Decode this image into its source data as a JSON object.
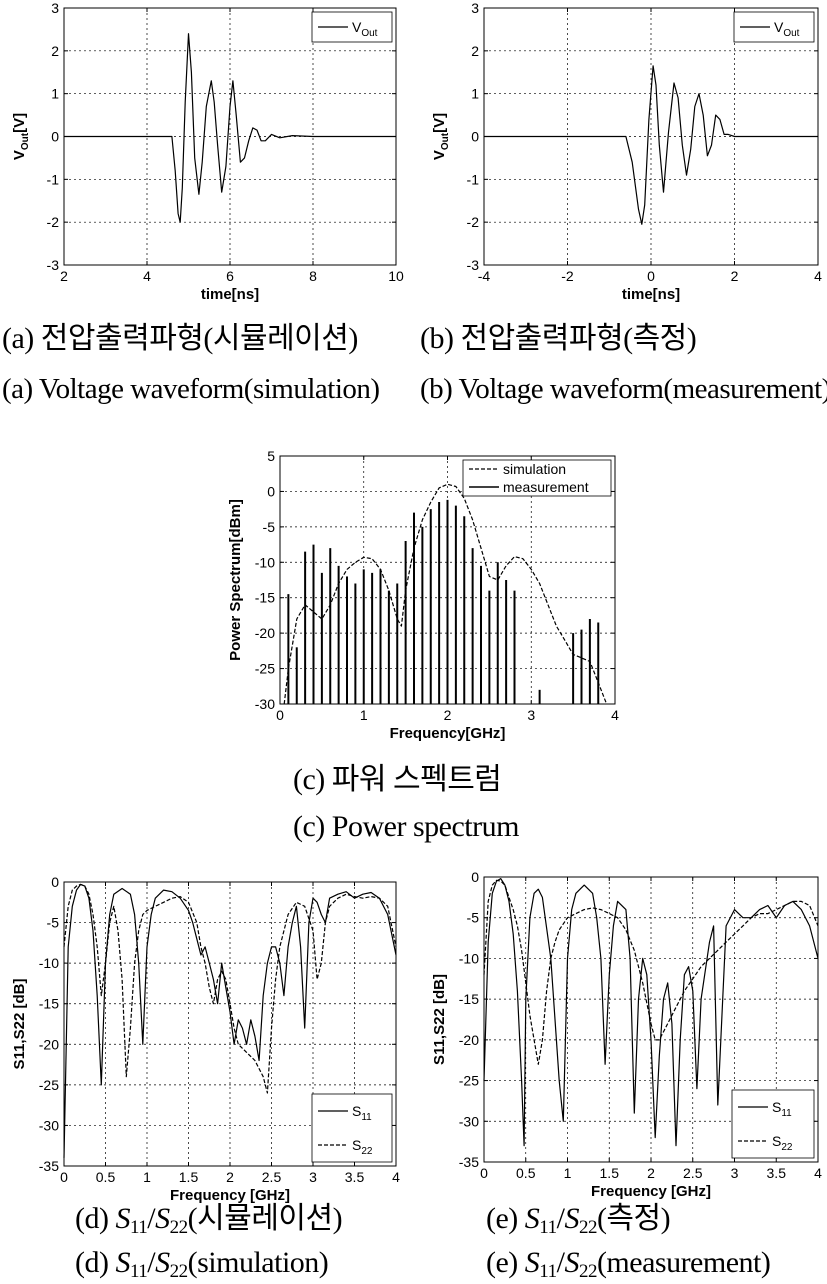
{
  "chart_data": [
    {
      "id": "a",
      "type": "line",
      "xlabel": "time[ns]",
      "ylabel": "V",
      "ylabel_sub": "Out",
      "ylabel_unit": "[V]",
      "xlim": [
        2,
        10
      ],
      "ylim": [
        -3,
        3
      ],
      "xticks": [
        2,
        4,
        6,
        8,
        10
      ],
      "yticks": [
        -3,
        -2,
        -1,
        0,
        1,
        2,
        3
      ],
      "grid": true,
      "legend_position": "top-right",
      "series": [
        {
          "name": "V",
          "name_sub": "Out",
          "style": "solid",
          "x": [
            2,
            4.6,
            4.68,
            4.75,
            4.8,
            4.85,
            4.92,
            5.0,
            5.07,
            5.15,
            5.25,
            5.33,
            5.43,
            5.55,
            5.62,
            5.7,
            5.8,
            5.9,
            6.0,
            6.07,
            6.15,
            6.25,
            6.35,
            6.45,
            6.55,
            6.65,
            6.75,
            6.85,
            7.0,
            7.2,
            7.5,
            8.0,
            10
          ],
          "y": [
            0,
            0,
            -0.8,
            -1.8,
            -2.0,
            -1.2,
            0.8,
            2.4,
            1.5,
            -0.5,
            -1.35,
            -0.6,
            0.7,
            1.3,
            0.8,
            -0.2,
            -1.3,
            -0.7,
            0.7,
            1.3,
            0.5,
            -0.6,
            -0.5,
            -0.1,
            0.2,
            0.15,
            -0.1,
            -0.1,
            0.05,
            -0.03,
            0.02,
            0,
            0
          ]
        }
      ]
    },
    {
      "id": "b",
      "type": "line",
      "xlabel": "time[ns]",
      "ylabel": "V",
      "ylabel_sub": "Out",
      "ylabel_unit": "[V]",
      "xlim": [
        -4,
        4
      ],
      "ylim": [
        -3,
        3
      ],
      "xticks": [
        -4,
        -2,
        0,
        2,
        4
      ],
      "yticks": [
        -3,
        -2,
        -1,
        0,
        1,
        2,
        3
      ],
      "grid": true,
      "legend_position": "top-right",
      "series": [
        {
          "name": "V",
          "name_sub": "Out",
          "style": "solid",
          "x": [
            -4,
            -0.6,
            -0.45,
            -0.3,
            -0.22,
            -0.15,
            -0.05,
            0.05,
            0.12,
            0.2,
            0.3,
            0.42,
            0.55,
            0.65,
            0.75,
            0.85,
            0.95,
            1.05,
            1.15,
            1.25,
            1.35,
            1.45,
            1.55,
            1.65,
            1.75,
            1.85,
            2.0,
            2.3,
            4
          ],
          "y": [
            0,
            0,
            -0.6,
            -1.7,
            -2.05,
            -1.6,
            0.4,
            1.65,
            1.2,
            -0.2,
            -1.3,
            0.1,
            1.25,
            0.9,
            -0.2,
            -0.9,
            -0.3,
            0.7,
            1.0,
            0.5,
            -0.45,
            -0.2,
            0.5,
            0.4,
            0.05,
            0.05,
            0,
            0,
            0
          ]
        }
      ]
    },
    {
      "id": "c",
      "type": "line",
      "xlabel": "Frequency[GHz]",
      "ylabel": "Power Spectrum[dBm]",
      "xlim": [
        0,
        4
      ],
      "ylim": [
        -30,
        5
      ],
      "xticks": [
        0,
        1,
        2,
        3,
        4
      ],
      "yticks": [
        -30,
        -25,
        -20,
        -15,
        -10,
        -5,
        0,
        5
      ],
      "grid": true,
      "legend_position": "top-right",
      "series": [
        {
          "name": "simulation",
          "style": "dashed",
          "x": [
            0.05,
            0.1,
            0.2,
            0.3,
            0.4,
            0.5,
            0.6,
            0.7,
            0.8,
            0.9,
            1.0,
            1.1,
            1.2,
            1.3,
            1.4,
            1.45,
            1.5,
            1.6,
            1.7,
            1.8,
            1.9,
            2.0,
            2.1,
            2.2,
            2.3,
            2.4,
            2.5,
            2.6,
            2.7,
            2.8,
            2.9,
            3.0,
            3.1,
            3.2,
            3.3,
            3.4,
            3.5,
            3.6,
            3.7,
            3.8,
            3.9
          ],
          "y": [
            -30,
            -25,
            -18,
            -16,
            -17,
            -18,
            -16,
            -13,
            -11,
            -10,
            -9.3,
            -9.5,
            -11,
            -14,
            -18,
            -19,
            -14,
            -8,
            -4,
            -1.5,
            0.5,
            1.0,
            0.7,
            -1,
            -4,
            -8,
            -12,
            -12.5,
            -10.5,
            -9.2,
            -9.5,
            -11,
            -13,
            -16,
            -19,
            -21,
            -23,
            -23.5,
            -24,
            -27,
            -30
          ]
        },
        {
          "name": "measurement",
          "style": "stems",
          "x": [
            0.1,
            0.2,
            0.3,
            0.4,
            0.5,
            0.6,
            0.7,
            0.8,
            0.9,
            1.0,
            1.1,
            1.2,
            1.3,
            1.4,
            1.5,
            1.6,
            1.7,
            1.8,
            1.9,
            2.0,
            2.1,
            2.2,
            2.3,
            2.4,
            2.5,
            2.6,
            2.7,
            2.8,
            3.1,
            3.5,
            3.6,
            3.7,
            3.8
          ],
          "y": [
            -14.5,
            -22,
            -8.5,
            -7.5,
            -11.5,
            -8,
            -10.5,
            -12,
            -13,
            -11,
            -11.5,
            -11,
            -14,
            -13,
            -7,
            -3,
            -5,
            -2.5,
            -1.5,
            -1.2,
            -2,
            -3.5,
            -8,
            -10.5,
            -14,
            -10,
            -12.5,
            -14,
            -28,
            -20,
            -19.5,
            -18,
            -18.5
          ]
        }
      ]
    },
    {
      "id": "d",
      "type": "line",
      "xlabel": "Frequency [GHz]",
      "ylabel": "S11,S22 [dB]",
      "xlim": [
        0,
        4
      ],
      "ylim": [
        -35,
        0
      ],
      "xticks": [
        0,
        0.5,
        1,
        1.5,
        2,
        2.5,
        3,
        3.5,
        4
      ],
      "yticks": [
        -35,
        -30,
        -25,
        -20,
        -15,
        -10,
        -5,
        0
      ],
      "grid": true,
      "legend_position": "bottom-right",
      "series": [
        {
          "name": "S",
          "name_sub": "11",
          "style": "solid",
          "x": [
            0,
            0.05,
            0.1,
            0.15,
            0.2,
            0.25,
            0.3,
            0.35,
            0.4,
            0.45,
            0.5,
            0.55,
            0.6,
            0.7,
            0.8,
            0.85,
            0.9,
            0.95,
            1.0,
            1.05,
            1.1,
            1.2,
            1.3,
            1.4,
            1.5,
            1.55,
            1.6,
            1.65,
            1.7,
            1.75,
            1.8,
            1.85,
            1.9,
            1.95,
            2.0,
            2.05,
            2.1,
            2.15,
            2.2,
            2.25,
            2.3,
            2.35,
            2.4,
            2.45,
            2.5,
            2.55,
            2.6,
            2.65,
            2.7,
            2.75,
            2.8,
            2.85,
            2.9,
            2.95,
            3.0,
            3.05,
            3.1,
            3.15,
            3.2,
            3.3,
            3.4,
            3.5,
            3.6,
            3.7,
            3.8,
            3.9,
            4.0
          ],
          "y": [
            -34,
            -8,
            -3,
            -1,
            -0.3,
            -0.5,
            -2,
            -6,
            -14,
            -25,
            -10,
            -4,
            -1.5,
            -0.8,
            -1.5,
            -4,
            -10,
            -20,
            -8,
            -4,
            -2,
            -1,
            -1.2,
            -2,
            -3.5,
            -5,
            -7,
            -9,
            -8,
            -10,
            -12,
            -15,
            -10,
            -13,
            -16,
            -20,
            -17,
            -18,
            -20,
            -17,
            -19,
            -22,
            -14,
            -10,
            -8,
            -8,
            -10,
            -14,
            -8,
            -5,
            -3,
            -8,
            -18,
            -5,
            -2,
            -2.5,
            -4,
            -5,
            -2,
            -1.5,
            -1.2,
            -2,
            -1.5,
            -1.3,
            -2,
            -4,
            -9
          ]
        },
        {
          "name": "S",
          "name_sub": "22",
          "style": "dashed",
          "x": [
            0,
            0.05,
            0.1,
            0.15,
            0.2,
            0.25,
            0.3,
            0.35,
            0.4,
            0.45,
            0.5,
            0.55,
            0.6,
            0.65,
            0.7,
            0.75,
            0.8,
            0.85,
            0.9,
            0.95,
            1.0,
            1.1,
            1.2,
            1.3,
            1.4,
            1.5,
            1.6,
            1.65,
            1.7,
            1.75,
            1.8,
            1.85,
            1.9,
            1.95,
            2.0,
            2.05,
            2.1,
            2.2,
            2.3,
            2.4,
            2.45,
            2.5,
            2.55,
            2.6,
            2.7,
            2.8,
            2.9,
            3.0,
            3.05,
            3.1,
            3.15,
            3.2,
            3.3,
            3.4,
            3.5,
            3.6,
            3.7,
            3.8,
            3.9,
            4.0
          ],
          "y": [
            -8,
            -3,
            -1,
            -0.5,
            -0.3,
            -0.5,
            -1.5,
            -4,
            -8,
            -14,
            -10,
            -5,
            -3,
            -6,
            -12,
            -24,
            -18,
            -10,
            -6,
            -4,
            -3.5,
            -3,
            -2.5,
            -2,
            -1.8,
            -2.5,
            -5,
            -8,
            -10,
            -13,
            -15,
            -12,
            -11,
            -12,
            -15,
            -18,
            -20,
            -21,
            -22,
            -24,
            -26,
            -18,
            -12,
            -8,
            -4,
            -2.5,
            -3,
            -6,
            -12,
            -10,
            -5,
            -3,
            -2,
            -1.5,
            -1.8,
            -2,
            -1.8,
            -2,
            -3,
            -8
          ]
        }
      ]
    },
    {
      "id": "e",
      "type": "line",
      "xlabel": "Frequency [GHz]",
      "ylabel": "S11,S22 [dB]",
      "xlim": [
        0,
        4
      ],
      "ylim": [
        -35,
        0
      ],
      "xticks": [
        0,
        0.5,
        1,
        1.5,
        2,
        2.5,
        3,
        3.5,
        4
      ],
      "yticks": [
        -35,
        -30,
        -25,
        -20,
        -15,
        -10,
        -5,
        0
      ],
      "grid": true,
      "legend_position": "bottom-right",
      "series": [
        {
          "name": "S",
          "name_sub": "11",
          "style": "solid",
          "x": [
            0,
            0.05,
            0.1,
            0.15,
            0.2,
            0.25,
            0.3,
            0.35,
            0.4,
            0.45,
            0.48,
            0.5,
            0.55,
            0.6,
            0.65,
            0.7,
            0.8,
            0.9,
            0.95,
            1.0,
            1.05,
            1.1,
            1.2,
            1.3,
            1.35,
            1.4,
            1.45,
            1.5,
            1.55,
            1.6,
            1.7,
            1.75,
            1.8,
            1.85,
            1.9,
            1.95,
            2.0,
            2.05,
            2.1,
            2.15,
            2.2,
            2.25,
            2.3,
            2.35,
            2.4,
            2.45,
            2.5,
            2.55,
            2.6,
            2.7,
            2.75,
            2.8,
            2.9,
            3.0,
            3.1,
            3.2,
            3.3,
            3.4,
            3.5,
            3.6,
            3.7,
            3.8,
            3.9,
            4.0
          ],
          "y": [
            -25,
            -8,
            -2,
            -0.5,
            -0.2,
            -1,
            -3,
            -7,
            -14,
            -25,
            -33,
            -15,
            -5,
            -2,
            -1.5,
            -2.5,
            -10,
            -25,
            -30,
            -10,
            -4,
            -2,
            -1,
            -2,
            -5,
            -10,
            -23,
            -12,
            -6,
            -3,
            -4,
            -10,
            -29,
            -15,
            -10,
            -12,
            -20,
            -32,
            -22,
            -15,
            -13,
            -18,
            -33,
            -20,
            -12,
            -11,
            -14,
            -26,
            -15,
            -8,
            -6,
            -28,
            -6,
            -4,
            -5,
            -5,
            -4,
            -3.5,
            -5,
            -3.5,
            -3,
            -4,
            -6,
            -10
          ]
        },
        {
          "name": "S",
          "name_sub": "22",
          "style": "dashed",
          "x": [
            0,
            0.05,
            0.1,
            0.15,
            0.2,
            0.25,
            0.3,
            0.35,
            0.4,
            0.45,
            0.5,
            0.55,
            0.6,
            0.65,
            0.7,
            0.75,
            0.8,
            0.85,
            0.9,
            1.0,
            1.1,
            1.2,
            1.3,
            1.4,
            1.5,
            1.6,
            1.7,
            1.8,
            1.9,
            2.0,
            2.05,
            2.1,
            2.2,
            2.3,
            2.4,
            2.5,
            2.6,
            2.7,
            2.8,
            2.9,
            3.0,
            3.1,
            3.2,
            3.3,
            3.4,
            3.5,
            3.6,
            3.7,
            3.8,
            3.9,
            4.0
          ],
          "y": [
            -12,
            -3,
            -1,
            -0.4,
            -0.5,
            -1,
            -2.5,
            -4,
            -6,
            -9,
            -13,
            -17,
            -20,
            -23,
            -20,
            -14,
            -10,
            -8,
            -6.5,
            -5,
            -4.5,
            -4,
            -3.8,
            -4,
            -4.5,
            -5,
            -6.5,
            -9,
            -13,
            -18,
            -20,
            -20,
            -18,
            -16,
            -14,
            -12.5,
            -11,
            -10,
            -9,
            -8,
            -7,
            -6,
            -5,
            -4.5,
            -4.5,
            -4,
            -3.5,
            -3,
            -3,
            -3.5,
            -6
          ]
        }
      ]
    }
  ],
  "captions": {
    "a_ko": "(a) 전압출력파형(시뮬레이션)",
    "b_ko": "(b) 전압출력파형(측정)",
    "a_en": "(a) Voltage waveform(simulation)",
    "b_en": "(b) Voltage waveform(measurement)",
    "c_ko": "(c)  파워  스펙트럼",
    "c_en": "(c)  Power  spectrum",
    "d_ko": {
      "label": "(d)",
      "s11": "S",
      "s11_sub": "11",
      "slash": "/",
      "s22": "S",
      "s22_sub": "22",
      "rest": "(시뮬레이션)"
    },
    "e_ko": {
      "label": "(e)",
      "s11": "S",
      "s11_sub": "11",
      "slash": "/",
      "s22": "S",
      "s22_sub": "22",
      "rest": "(측정)"
    },
    "d_en": {
      "label": "(d)",
      "s11": "S",
      "s11_sub": "11",
      "slash": "/",
      "s22": "S",
      "s22_sub": "22",
      "rest": "(simulation)"
    },
    "e_en": {
      "label": "(e)",
      "s11": "S",
      "s11_sub": "11",
      "slash": "/",
      "s22": "S",
      "s22_sub": "22",
      "rest": "(measurement)"
    }
  }
}
